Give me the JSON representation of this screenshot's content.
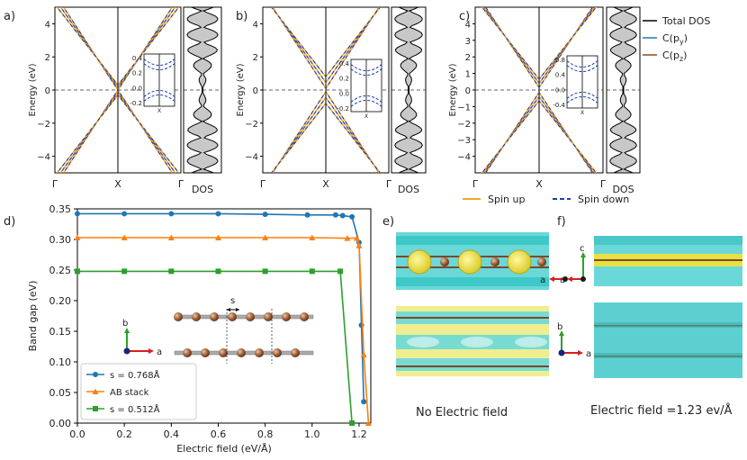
{
  "panel_labels": [
    "a)",
    "b)",
    "c)",
    "d)",
    "e)",
    "f)"
  ],
  "band_panels": {
    "ylabel": "Energy (eV)",
    "dos_label": "DOS",
    "kpoints": [
      "Γ",
      "X",
      "Γ"
    ],
    "yticks_ab": [
      "4",
      "2",
      "0",
      "−2",
      "−4"
    ],
    "yticks_c": [
      "4",
      "3",
      "2",
      "1",
      "0",
      "−1",
      "−2",
      "−3",
      "−4"
    ],
    "inset_ticks_ab": [
      "0.4",
      "0.2",
      "0.0",
      "-0.2"
    ],
    "inset_ticks_c": [
      "0.8",
      "0.4",
      "0.0",
      "-0.4"
    ],
    "inset_xlabel": "X"
  },
  "legend_dos": {
    "total": "Total DOS",
    "cpy": "C(p",
    "cpy_sub": "y",
    "cpz": "C(p",
    "cpz_sub": "z",
    "close": ")",
    "colors": {
      "total": "#000000",
      "cpy": "#1f77b4",
      "cpz": "#8c4a14"
    }
  },
  "legend_spin": {
    "up": "Spin up",
    "down": "Spin down",
    "up_color": "#f5a623",
    "down_color": "#1f3fb0"
  },
  "chart_data": {
    "type": "line",
    "title": "",
    "xlabel": "Electric field (eV/Å)",
    "ylabel": "Band gap (eV)",
    "xlim": [
      0,
      1.25
    ],
    "ylim": [
      0,
      0.35
    ],
    "xticks": [
      "0.0",
      "0.2",
      "0.4",
      "0.6",
      "0.8",
      "1.0",
      "1.2"
    ],
    "yticks": [
      "0.00",
      "0.05",
      "0.10",
      "0.15",
      "0.20",
      "0.25",
      "0.30",
      "0.35"
    ],
    "series": [
      {
        "name": "s = 0.768Å",
        "color": "#1f77b4",
        "marker": "circle",
        "x": [
          0.0,
          0.2,
          0.4,
          0.6,
          0.8,
          0.98,
          1.1,
          1.13,
          1.17,
          1.2,
          1.21,
          1.22
        ],
        "y": [
          0.342,
          0.342,
          0.342,
          0.342,
          0.341,
          0.34,
          0.34,
          0.339,
          0.337,
          0.295,
          0.16,
          0.035
        ]
      },
      {
        "name": "AB stack",
        "color": "#ff7f0e",
        "marker": "triangle",
        "x": [
          0.0,
          0.2,
          0.4,
          0.6,
          0.8,
          1.0,
          1.15,
          1.19,
          1.2,
          1.22,
          1.24
        ],
        "y": [
          0.303,
          0.303,
          0.303,
          0.303,
          0.303,
          0.303,
          0.302,
          0.302,
          0.29,
          0.112,
          0.0
        ]
      },
      {
        "name": "s = 0.512Å",
        "color": "#2ca02c",
        "marker": "square",
        "x": [
          0.0,
          0.2,
          0.4,
          0.6,
          0.8,
          1.0,
          1.12,
          1.17
        ],
        "y": [
          0.248,
          0.248,
          0.248,
          0.248,
          0.248,
          0.248,
          0.248,
          0.0
        ]
      }
    ],
    "legend_position": "lower-left"
  },
  "structure_inset": {
    "s_label": "s",
    "axis_b": "b",
    "axis_a": "a"
  },
  "panel_e": {
    "caption": "No Electric field",
    "axis_a": "a"
  },
  "panel_f": {
    "caption": "Electric field =1.23 ev/Å",
    "axis_c": "c",
    "axis_a": "a",
    "axis_b": "b"
  }
}
